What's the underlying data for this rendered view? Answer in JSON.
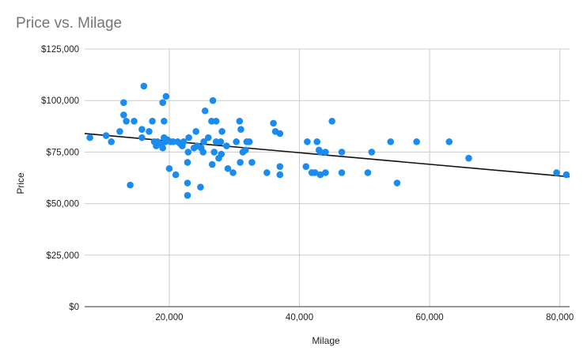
{
  "chart_data": {
    "type": "scatter",
    "title": "Price vs. Milage",
    "xlabel": "Milage",
    "ylabel": "Price",
    "xlim": [
      7000,
      81500
    ],
    "ylim": [
      0,
      125000
    ],
    "x_ticks": [
      {
        "value": 20000,
        "label": "20,000"
      },
      {
        "value": 40000,
        "label": "40,000"
      },
      {
        "value": 60000,
        "label": "60,000"
      },
      {
        "value": 80000,
        "label": "80,000"
      }
    ],
    "y_ticks": [
      {
        "value": 0,
        "label": "$0"
      },
      {
        "value": 25000,
        "label": "$25,000"
      },
      {
        "value": 50000,
        "label": "$50,000"
      },
      {
        "value": 75000,
        "label": "$75,000"
      },
      {
        "value": 100000,
        "label": "$100,000"
      },
      {
        "value": 125000,
        "label": "$125,000"
      }
    ],
    "grid": true,
    "legend": "none",
    "colors": {
      "points": "#1a8cf0",
      "trendline": "#111111",
      "grid": "#cccccc",
      "axis": "#333333"
    },
    "trendline": {
      "type": "linear",
      "x": [
        7000,
        81500
      ],
      "y": [
        84000,
        63000
      ]
    },
    "points": [
      {
        "x": 7800,
        "y": 82000
      },
      {
        "x": 10300,
        "y": 83000
      },
      {
        "x": 11100,
        "y": 80000
      },
      {
        "x": 12400,
        "y": 85000
      },
      {
        "x": 13000,
        "y": 99000
      },
      {
        "x": 13000,
        "y": 93000
      },
      {
        "x": 13400,
        "y": 90000
      },
      {
        "x": 14000,
        "y": 59000
      },
      {
        "x": 14600,
        "y": 90000
      },
      {
        "x": 15800,
        "y": 86000
      },
      {
        "x": 15800,
        "y": 82000
      },
      {
        "x": 16100,
        "y": 107000
      },
      {
        "x": 16900,
        "y": 85000
      },
      {
        "x": 17400,
        "y": 90000
      },
      {
        "x": 17700,
        "y": 80000
      },
      {
        "x": 18000,
        "y": 78000
      },
      {
        "x": 18200,
        "y": 80000
      },
      {
        "x": 18700,
        "y": 79000
      },
      {
        "x": 19000,
        "y": 99000
      },
      {
        "x": 19000,
        "y": 77000
      },
      {
        "x": 19200,
        "y": 90000
      },
      {
        "x": 19200,
        "y": 82000
      },
      {
        "x": 19400,
        "y": 80000
      },
      {
        "x": 19500,
        "y": 102000
      },
      {
        "x": 19700,
        "y": 81000
      },
      {
        "x": 20000,
        "y": 67000
      },
      {
        "x": 20200,
        "y": 80000
      },
      {
        "x": 20600,
        "y": 80000
      },
      {
        "x": 21000,
        "y": 64000
      },
      {
        "x": 21300,
        "y": 80000
      },
      {
        "x": 21700,
        "y": 79000
      },
      {
        "x": 22000,
        "y": 78000
      },
      {
        "x": 22200,
        "y": 80000
      },
      {
        "x": 22800,
        "y": 70000
      },
      {
        "x": 22800,
        "y": 60000
      },
      {
        "x": 22800,
        "y": 54000
      },
      {
        "x": 22900,
        "y": 75000
      },
      {
        "x": 23000,
        "y": 82000
      },
      {
        "x": 23800,
        "y": 77000
      },
      {
        "x": 24100,
        "y": 85000
      },
      {
        "x": 24300,
        "y": 78000
      },
      {
        "x": 24800,
        "y": 58000
      },
      {
        "x": 24900,
        "y": 77000
      },
      {
        "x": 25200,
        "y": 75000
      },
      {
        "x": 25300,
        "y": 80000
      },
      {
        "x": 25500,
        "y": 95000
      },
      {
        "x": 26000,
        "y": 82000
      },
      {
        "x": 26500,
        "y": 90000
      },
      {
        "x": 26600,
        "y": 69000
      },
      {
        "x": 26700,
        "y": 100000
      },
      {
        "x": 26900,
        "y": 75000
      },
      {
        "x": 27200,
        "y": 90000
      },
      {
        "x": 27200,
        "y": 80000
      },
      {
        "x": 27600,
        "y": 72000
      },
      {
        "x": 27900,
        "y": 80000
      },
      {
        "x": 28000,
        "y": 74000
      },
      {
        "x": 28100,
        "y": 85000
      },
      {
        "x": 28800,
        "y": 78000
      },
      {
        "x": 29000,
        "y": 67000
      },
      {
        "x": 29800,
        "y": 65000
      },
      {
        "x": 30300,
        "y": 80000
      },
      {
        "x": 30800,
        "y": 90000
      },
      {
        "x": 30900,
        "y": 70000
      },
      {
        "x": 31000,
        "y": 86000
      },
      {
        "x": 31300,
        "y": 75000
      },
      {
        "x": 31700,
        "y": 76000
      },
      {
        "x": 31900,
        "y": 80000
      },
      {
        "x": 32300,
        "y": 80000
      },
      {
        "x": 32700,
        "y": 70000
      },
      {
        "x": 35000,
        "y": 65000
      },
      {
        "x": 36000,
        "y": 89000
      },
      {
        "x": 36300,
        "y": 85000
      },
      {
        "x": 37000,
        "y": 84000
      },
      {
        "x": 37000,
        "y": 68000
      },
      {
        "x": 37000,
        "y": 64000
      },
      {
        "x": 41000,
        "y": 68000
      },
      {
        "x": 41200,
        "y": 80000
      },
      {
        "x": 41900,
        "y": 65000
      },
      {
        "x": 42400,
        "y": 65000
      },
      {
        "x": 42700,
        "y": 80000
      },
      {
        "x": 43000,
        "y": 76000
      },
      {
        "x": 43200,
        "y": 75000
      },
      {
        "x": 43200,
        "y": 64000
      },
      {
        "x": 44000,
        "y": 75000
      },
      {
        "x": 44000,
        "y": 65000
      },
      {
        "x": 45000,
        "y": 90000
      },
      {
        "x": 46500,
        "y": 75000
      },
      {
        "x": 46500,
        "y": 65000
      },
      {
        "x": 50500,
        "y": 65000
      },
      {
        "x": 51100,
        "y": 75000
      },
      {
        "x": 54000,
        "y": 80000
      },
      {
        "x": 55000,
        "y": 60000
      },
      {
        "x": 58000,
        "y": 80000
      },
      {
        "x": 63000,
        "y": 80000
      },
      {
        "x": 66000,
        "y": 72000
      },
      {
        "x": 79500,
        "y": 65000
      },
      {
        "x": 81000,
        "y": 64000
      }
    ]
  }
}
